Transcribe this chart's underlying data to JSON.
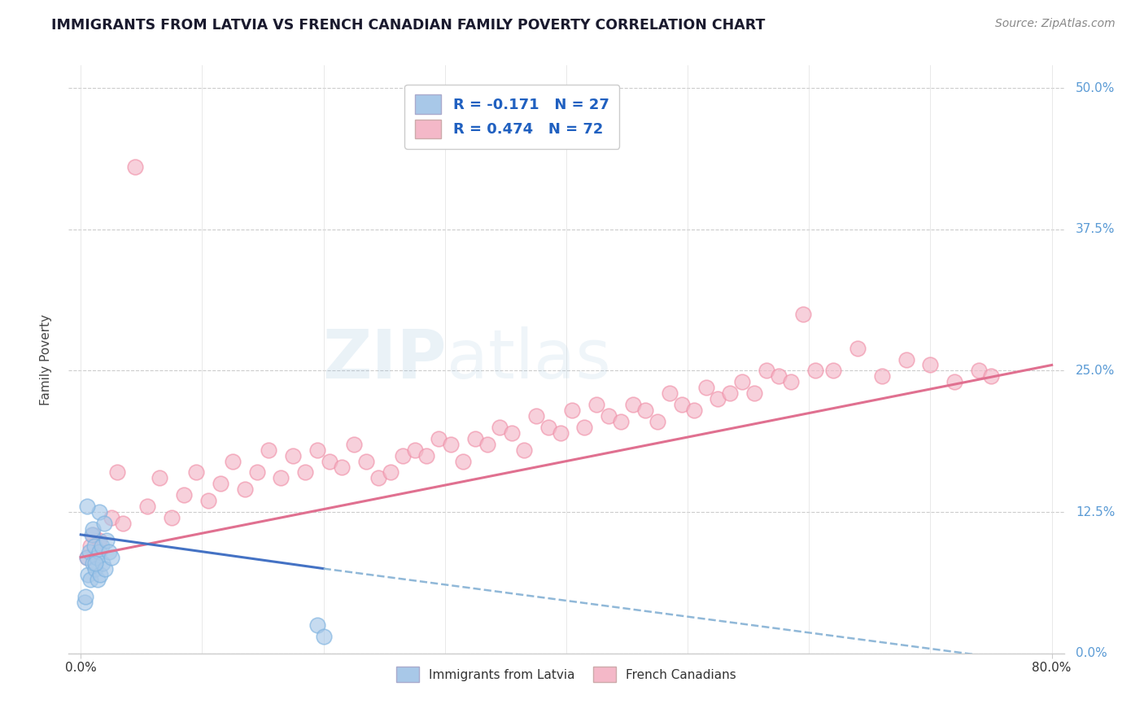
{
  "title": "IMMIGRANTS FROM LATVIA VS FRENCH CANADIAN FAMILY POVERTY CORRELATION CHART",
  "source": "Source: ZipAtlas.com",
  "ylabel": "Family Poverty",
  "ytick_labels": [
    "0.0%",
    "12.5%",
    "25.0%",
    "37.5%",
    "50.0%"
  ],
  "ytick_values": [
    0,
    12.5,
    25.0,
    37.5,
    50.0
  ],
  "xlim": [
    0,
    80
  ],
  "ylim": [
    0,
    52
  ],
  "legend_R1": "R = -0.171",
  "legend_N1": "N = 27",
  "legend_R2": "R = 0.474",
  "legend_N2": "N = 72",
  "color_blue_fill": "#A8C8E8",
  "color_blue_edge": "#7EB3E0",
  "color_pink_fill": "#F4B8C8",
  "color_pink_edge": "#F090A8",
  "color_line_blue_solid": "#4472C4",
  "color_line_blue_dash": "#90B8D8",
  "color_line_pink": "#E07090",
  "color_ytick": "#5B9BD5",
  "watermark_zip": "ZIP",
  "watermark_atlas": "atlas",
  "bg_color": "#FFFFFF",
  "legend_text_color": "#1F4080",
  "legend_value_color": "#2060C0",
  "blue_x": [
    0.3,
    0.4,
    0.5,
    0.6,
    0.7,
    0.8,
    0.9,
    1.0,
    1.0,
    1.1,
    1.2,
    1.3,
    1.4,
    1.5,
    1.5,
    1.6,
    1.7,
    1.8,
    1.9,
    2.0,
    2.1,
    2.3,
    2.5,
    0.5,
    1.2,
    19.5,
    20.0
  ],
  "blue_y": [
    4.5,
    5.0,
    8.5,
    7.0,
    9.0,
    6.5,
    10.5,
    8.0,
    11.0,
    9.5,
    7.5,
    8.5,
    6.5,
    9.0,
    12.5,
    7.0,
    9.5,
    8.0,
    11.5,
    7.5,
    10.0,
    9.0,
    8.5,
    13.0,
    8.0,
    2.5,
    1.5
  ],
  "pink_x": [
    4.5,
    1.5,
    2.5,
    3.5,
    5.5,
    6.5,
    7.5,
    8.5,
    9.5,
    10.5,
    11.5,
    12.5,
    13.5,
    14.5,
    15.5,
    16.5,
    17.5,
    18.5,
    19.5,
    20.5,
    21.5,
    22.5,
    23.5,
    24.5,
    25.5,
    26.5,
    27.5,
    28.5,
    29.5,
    30.5,
    31.5,
    32.5,
    33.5,
    34.5,
    35.5,
    36.5,
    37.5,
    38.5,
    39.5,
    40.5,
    41.5,
    42.5,
    43.5,
    44.5,
    45.5,
    46.5,
    47.5,
    48.5,
    49.5,
    50.5,
    51.5,
    52.5,
    53.5,
    54.5,
    55.5,
    56.5,
    57.5,
    58.5,
    59.5,
    60.5,
    62.0,
    64.0,
    66.0,
    68.0,
    70.0,
    72.0,
    74.0,
    75.0,
    0.8,
    3.0,
    0.5,
    1.0
  ],
  "pink_y": [
    43.0,
    10.0,
    12.0,
    11.5,
    13.0,
    15.5,
    12.0,
    14.0,
    16.0,
    13.5,
    15.0,
    17.0,
    14.5,
    16.0,
    18.0,
    15.5,
    17.5,
    16.0,
    18.0,
    17.0,
    16.5,
    18.5,
    17.0,
    15.5,
    16.0,
    17.5,
    18.0,
    17.5,
    19.0,
    18.5,
    17.0,
    19.0,
    18.5,
    20.0,
    19.5,
    18.0,
    21.0,
    20.0,
    19.5,
    21.5,
    20.0,
    22.0,
    21.0,
    20.5,
    22.0,
    21.5,
    20.5,
    23.0,
    22.0,
    21.5,
    23.5,
    22.5,
    23.0,
    24.0,
    23.0,
    25.0,
    24.5,
    24.0,
    30.0,
    25.0,
    25.0,
    27.0,
    24.5,
    26.0,
    25.5,
    24.0,
    25.0,
    24.5,
    9.5,
    16.0,
    8.5,
    10.5
  ],
  "pink_line_x0": 0,
  "pink_line_y0": 8.5,
  "pink_line_x1": 80,
  "pink_line_y1": 25.5,
  "blue_solid_x0": 0,
  "blue_solid_y0": 10.5,
  "blue_solid_x1": 20,
  "blue_solid_y1": 7.5,
  "blue_dash_x0": 20,
  "blue_dash_y0": 7.5,
  "blue_dash_x1": 80,
  "blue_dash_y1": -1.0
}
